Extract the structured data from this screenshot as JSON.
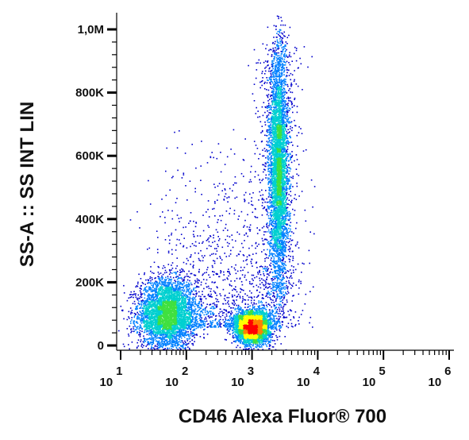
{
  "chart_data": {
    "type": "scatter",
    "title": "",
    "xlabel": "CD46 Alexa Fluor® 700",
    "ylabel": "SS-A :: SS INT LIN",
    "x_scale": "log",
    "xlim": [
      10,
      1000000
    ],
    "ylim": [
      0,
      1000000
    ],
    "x_ticks": [
      {
        "base": "10",
        "exp": "1",
        "value": 10
      },
      {
        "base": "10",
        "exp": "2",
        "value": 100
      },
      {
        "base": "10",
        "exp": "3",
        "value": 1000
      },
      {
        "base": "10",
        "exp": "4",
        "value": 10000
      },
      {
        "base": "10",
        "exp": "5",
        "value": 100000
      },
      {
        "base": "10",
        "exp": "6",
        "value": 1000000
      }
    ],
    "y_ticks": [
      {
        "label": "0",
        "value": 0
      },
      {
        "label": "200K",
        "value": 200000
      },
      {
        "label": "400K",
        "value": 400000
      },
      {
        "label": "600K",
        "value": 600000
      },
      {
        "label": "800K",
        "value": 800000
      },
      {
        "label": "1,0M",
        "value": 1000000
      }
    ],
    "grid": false,
    "legend": "none",
    "density_colormap": [
      "#0000cc",
      "#0080ff",
      "#00d0d0",
      "#40e040",
      "#ffff00",
      "#ff8000",
      "#ff0000"
    ],
    "populations": [
      {
        "x_center": 50,
        "y_center": 100000,
        "x_spread_decades": 0.22,
        "y_spread": 55000,
        "relative_size": 0.3
      },
      {
        "x_center": 1000,
        "y_center": 60000,
        "x_spread_decades": 0.13,
        "y_spread": 25000,
        "relative_size": 0.3
      },
      {
        "x_center": 2500,
        "y_center": 560000,
        "x_spread_decades": 0.07,
        "y_spread": 190000,
        "relative_size": 0.3
      }
    ]
  }
}
